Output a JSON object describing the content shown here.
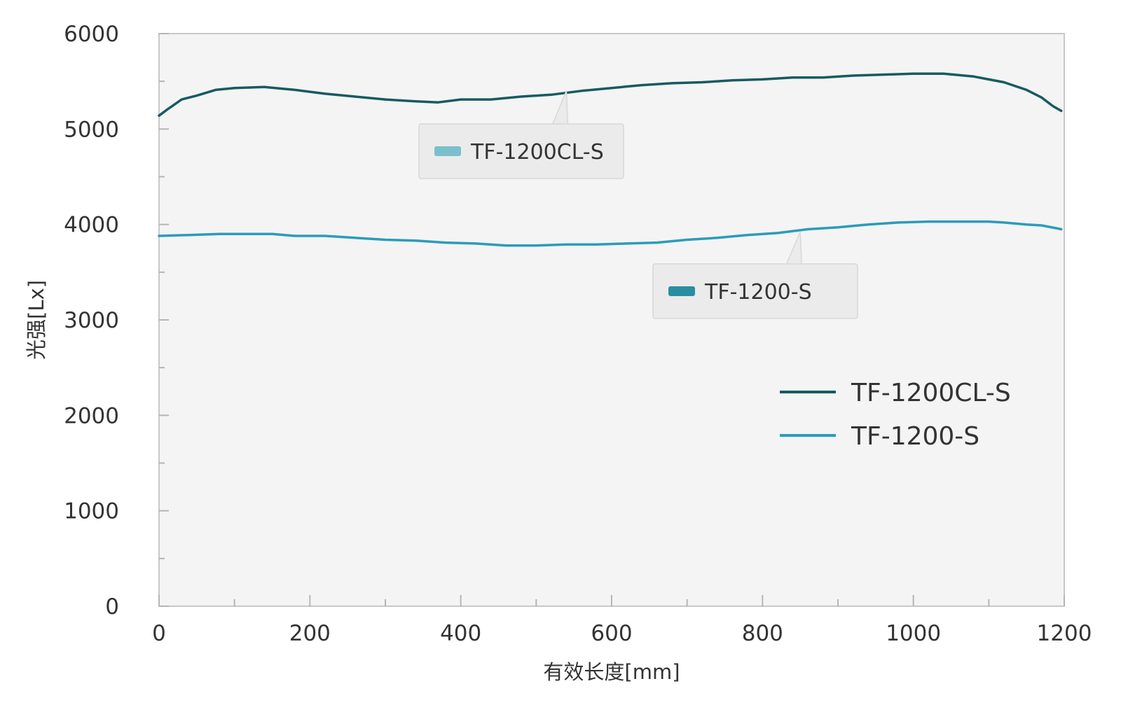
{
  "chart_data": {
    "type": "line",
    "title": "",
    "xlabel": "有效长度[mm]",
    "ylabel": "光强[Lx]",
    "xlim": [
      0,
      1200
    ],
    "ylim": [
      0,
      6000
    ],
    "x_ticks": [
      0,
      200,
      400,
      600,
      800,
      1000,
      1200
    ],
    "y_ticks": [
      0,
      1000,
      2000,
      3000,
      4000,
      5000,
      6000
    ],
    "x_tick_labels": [
      "0",
      "200",
      "400",
      "600",
      "800",
      "1000",
      "1200"
    ],
    "y_tick_labels": [
      "0",
      "1000",
      "2000",
      "3000",
      "4000",
      "5000",
      "6000"
    ],
    "grid": false,
    "legend_position": "right",
    "background": "#f4f4f4",
    "series": [
      {
        "name": "TF-1200CL-S",
        "color": "#175a63",
        "x": [
          0,
          10,
          30,
          50,
          75,
          100,
          140,
          180,
          220,
          260,
          300,
          340,
          370,
          400,
          440,
          480,
          520,
          560,
          600,
          640,
          680,
          720,
          760,
          800,
          840,
          880,
          920,
          960,
          1000,
          1040,
          1080,
          1120,
          1150,
          1170,
          1185,
          1196
        ],
        "y": [
          5140,
          5200,
          5310,
          5350,
          5410,
          5430,
          5440,
          5410,
          5370,
          5340,
          5310,
          5290,
          5280,
          5310,
          5310,
          5340,
          5360,
          5400,
          5430,
          5460,
          5480,
          5490,
          5510,
          5520,
          5540,
          5540,
          5560,
          5570,
          5580,
          5580,
          5550,
          5490,
          5410,
          5330,
          5240,
          5190
        ]
      },
      {
        "name": "TF-1200-S",
        "color": "#2a9cbb",
        "x": [
          0,
          40,
          80,
          120,
          150,
          180,
          220,
          260,
          300,
          340,
          380,
          420,
          460,
          500,
          540,
          580,
          620,
          660,
          700,
          740,
          780,
          820,
          860,
          900,
          940,
          980,
          1020,
          1060,
          1100,
          1120,
          1150,
          1170,
          1190,
          1196
        ],
        "y": [
          3880,
          3890,
          3900,
          3900,
          3900,
          3880,
          3880,
          3860,
          3840,
          3830,
          3810,
          3800,
          3780,
          3780,
          3790,
          3790,
          3800,
          3810,
          3840,
          3860,
          3890,
          3910,
          3950,
          3970,
          4000,
          4020,
          4030,
          4030,
          4030,
          4020,
          4000,
          3990,
          3960,
          3950
        ]
      }
    ],
    "callouts": [
      {
        "text": "TF-1200CL-S",
        "swatch_color": "#7cbfcc",
        "anchor_x": 540,
        "anchor_y": 5400
      },
      {
        "text": "TF-1200-S",
        "swatch_color": "#2a8ea0",
        "anchor_x": 850,
        "anchor_y": 3920
      }
    ]
  }
}
